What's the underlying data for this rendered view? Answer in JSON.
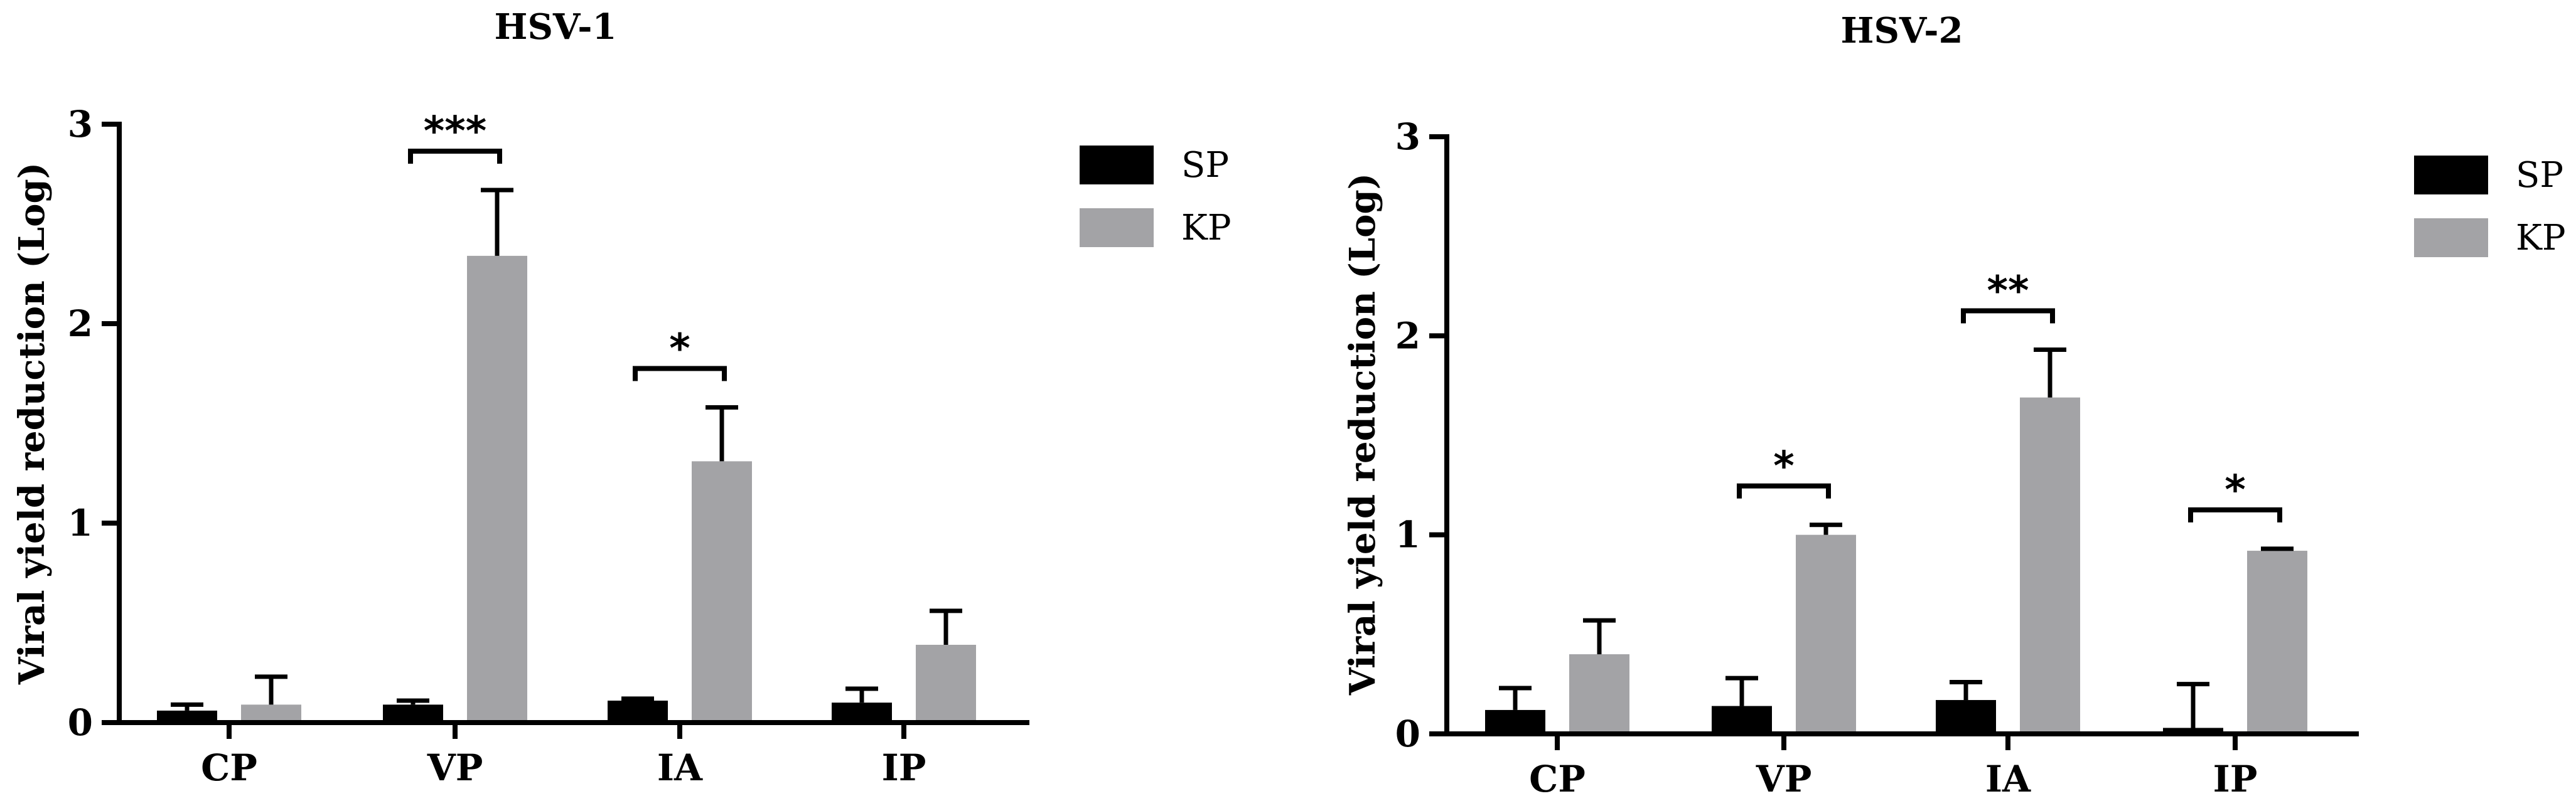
{
  "chart_data": [
    {
      "type": "bar",
      "title": "HSV-1",
      "ylabel": "Viral yield reduction (Log)",
      "xlabel": "",
      "ylim": [
        0,
        3
      ],
      "yticks": [
        "0",
        "1",
        "2",
        "3"
      ],
      "categories": [
        "CP",
        "VP",
        "IA",
        "IP"
      ],
      "legend_position": "top-right",
      "series": [
        {
          "name": "SP",
          "color": "#000000",
          "values": [
            0.06,
            0.09,
            0.11,
            0.1
          ],
          "errors": [
            0.03,
            0.02,
            0.01,
            0.07
          ]
        },
        {
          "name": "KP",
          "color": "#a3a3a6",
          "values": [
            0.09,
            2.34,
            1.31,
            0.39
          ],
          "errors": [
            0.14,
            0.33,
            0.27,
            0.17
          ]
        }
      ],
      "significance": [
        {
          "category": "VP",
          "label": "***"
        },
        {
          "category": "IA",
          "label": "*"
        }
      ]
    },
    {
      "type": "bar",
      "title": "HSV-2",
      "ylabel": "Viral yield reduction (Log)",
      "xlabel": "",
      "ylim": [
        0,
        3
      ],
      "yticks": [
        "0",
        "1",
        "2",
        "3"
      ],
      "categories": [
        "CP",
        "VP",
        "IA",
        "IP"
      ],
      "legend_position": "top-right",
      "series": [
        {
          "name": "SP",
          "color": "#000000",
          "values": [
            0.12,
            0.14,
            0.17,
            0.03
          ],
          "errors": [
            0.11,
            0.14,
            0.09,
            0.22
          ]
        },
        {
          "name": "KP",
          "color": "#a3a3a6",
          "values": [
            0.4,
            1.0,
            1.69,
            0.92
          ],
          "errors": [
            0.17,
            0.05,
            0.24,
            0.01
          ]
        }
      ],
      "significance": [
        {
          "category": "VP",
          "label": "*"
        },
        {
          "category": "IA",
          "label": "**"
        },
        {
          "category": "IP",
          "label": "*"
        }
      ]
    }
  ]
}
